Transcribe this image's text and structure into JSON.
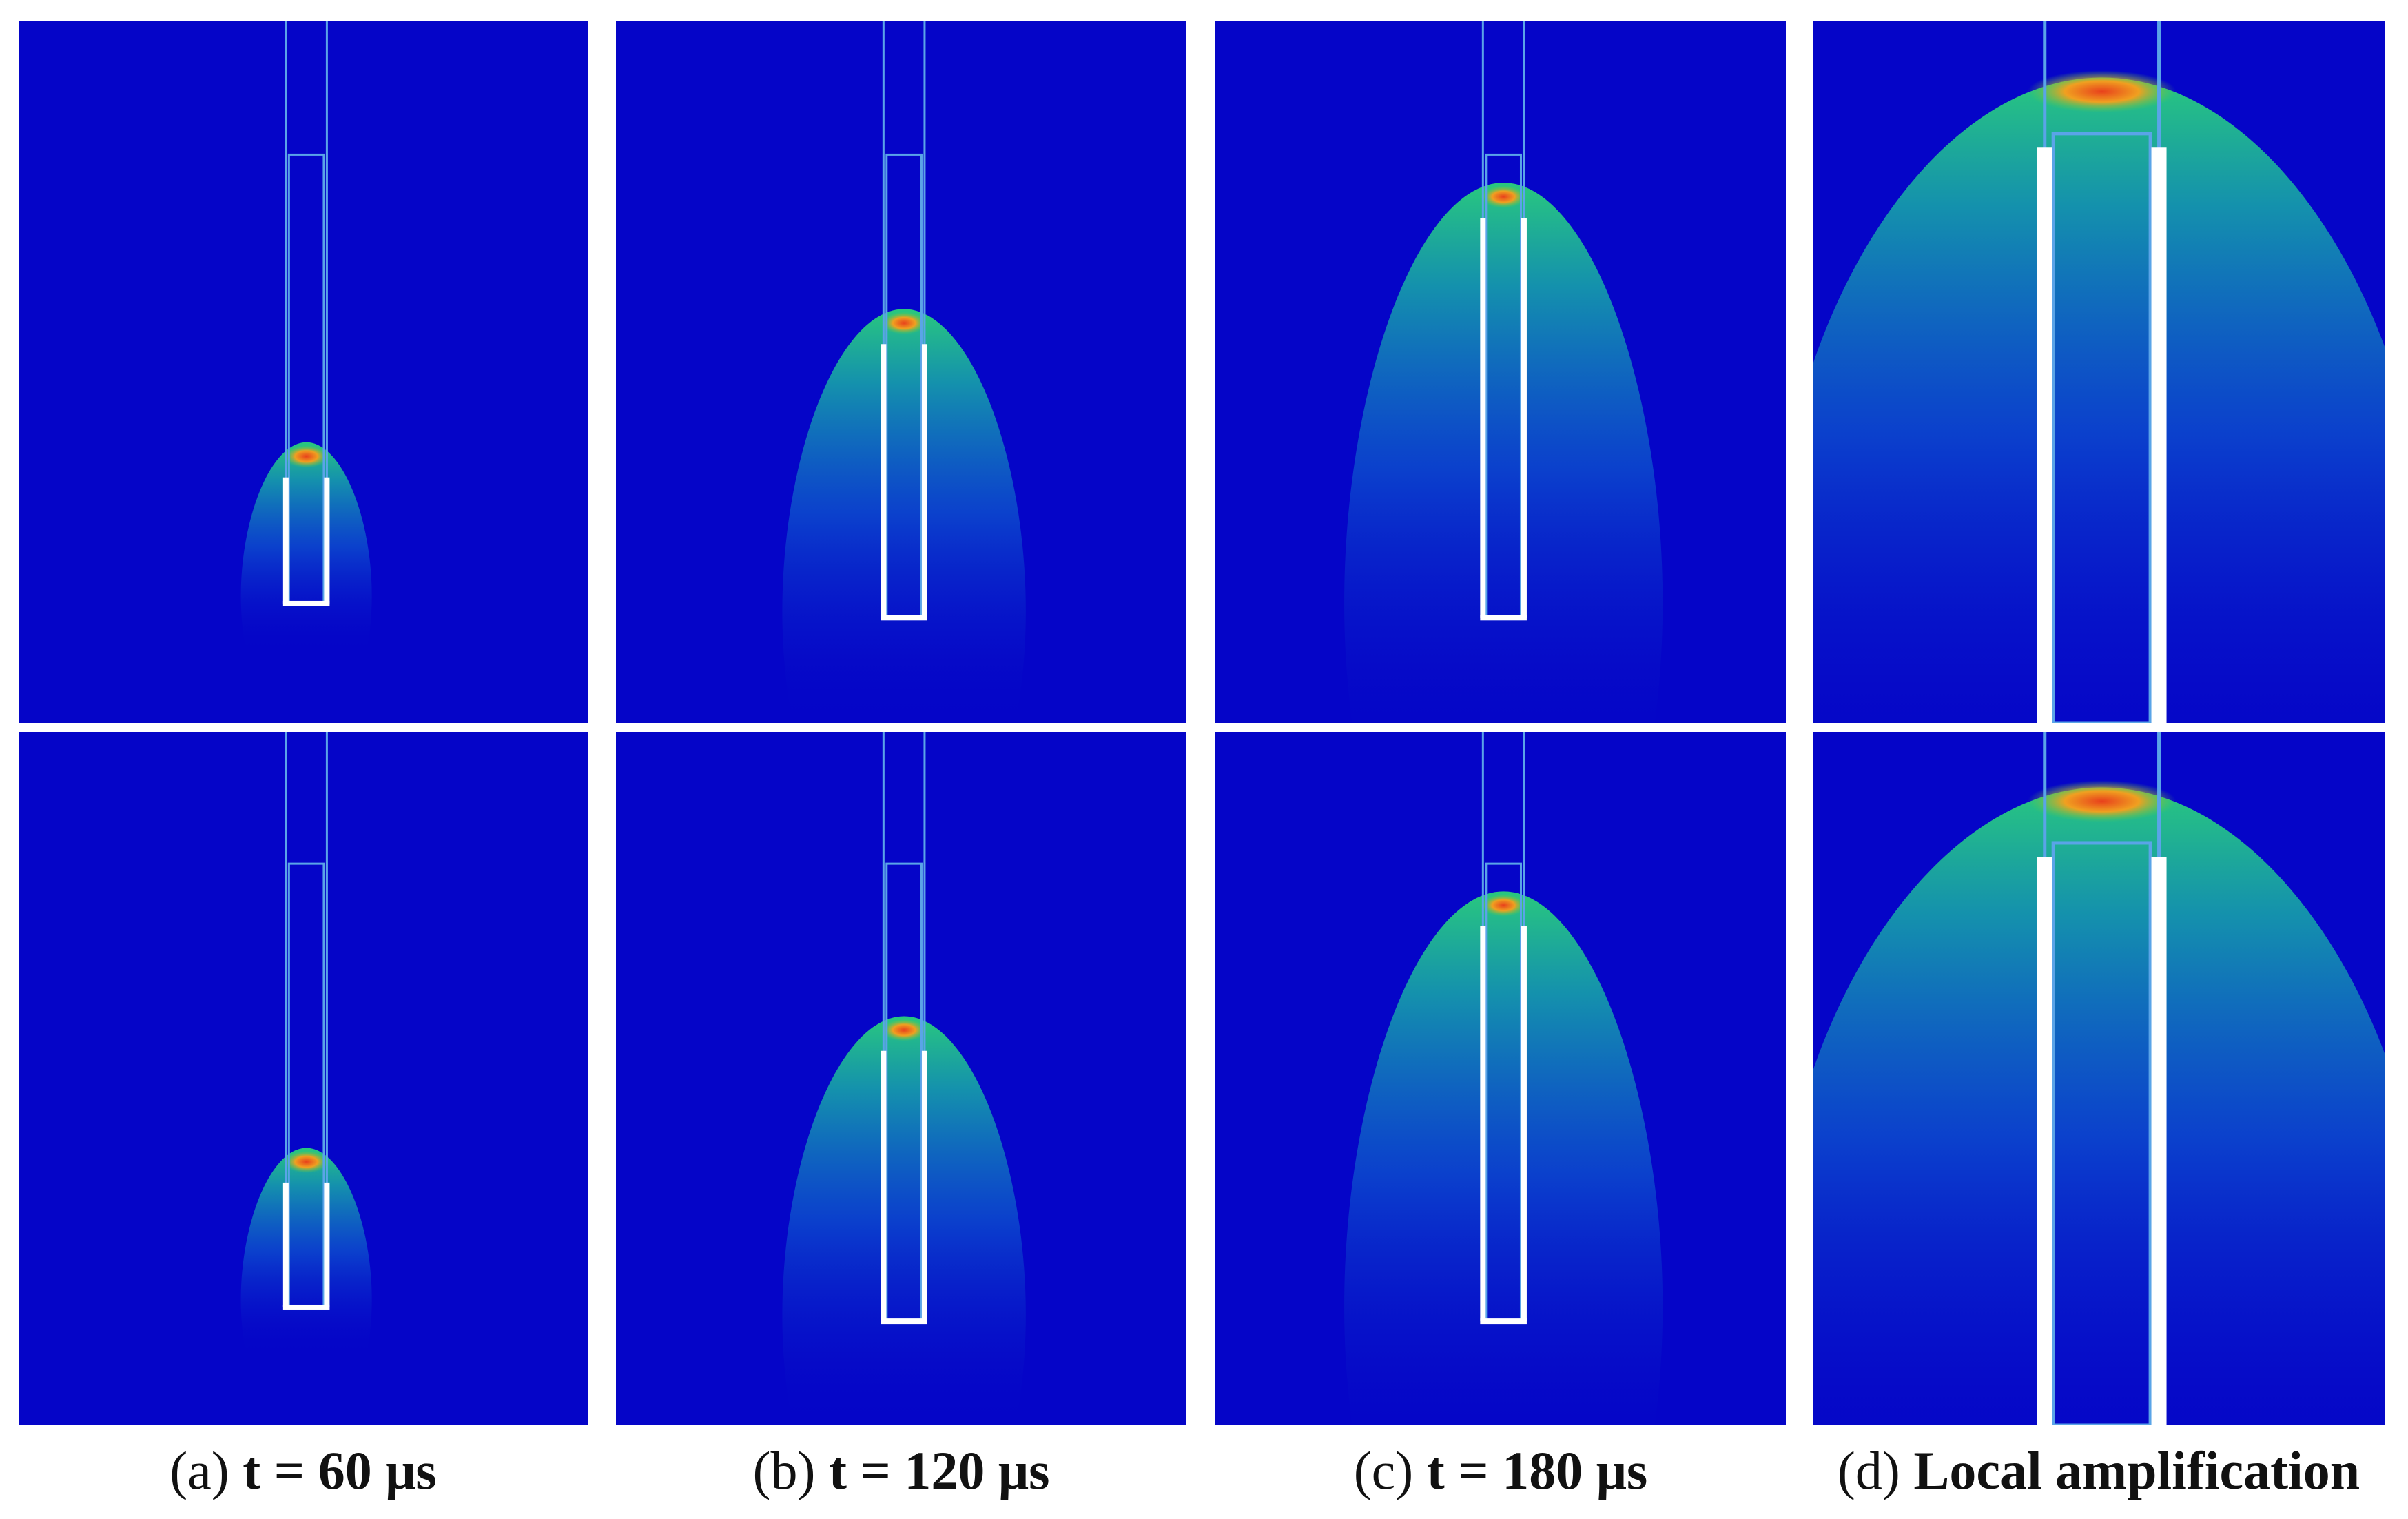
{
  "captions": [
    {
      "tag": "(a)",
      "text": "t = 60 μs"
    },
    {
      "tag": "(b)",
      "text": "t = 120 μs"
    },
    {
      "tag": "(c)",
      "text": "t = 180 μs"
    },
    {
      "tag": "(d)",
      "text": "Local amplification"
    }
  ]
}
